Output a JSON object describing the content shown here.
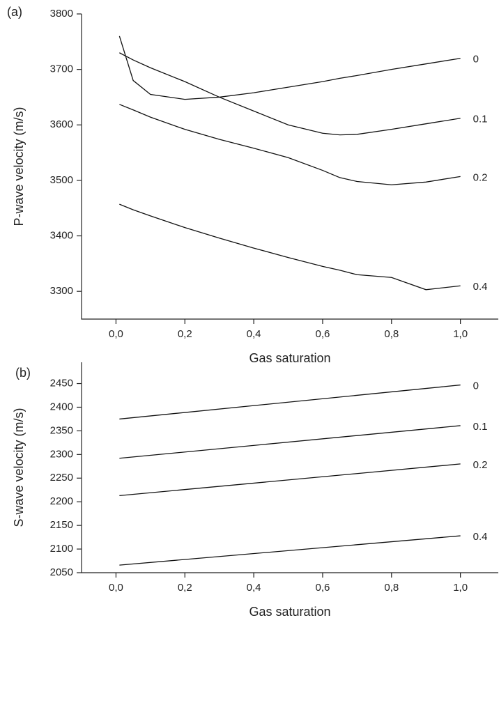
{
  "chart_data": [
    {
      "type": "line",
      "panel_label": "(a)",
      "x_label": "Gas saturation",
      "y_label": "P-wave velocity (m/s)",
      "x": [
        0.01,
        0.05,
        0.1,
        0.2,
        0.3,
        0.4,
        0.5,
        0.6,
        0.65,
        0.7,
        0.8,
        0.9,
        1.0
      ],
      "series": [
        {
          "name": "0",
          "color": "#111111",
          "values": [
            3760,
            3680,
            3655,
            3646,
            3650,
            3658,
            3668,
            3678,
            3684,
            3689,
            3700,
            3710,
            3720
          ]
        },
        {
          "name": "0.1",
          "color": "#111111",
          "values": [
            3730,
            3717,
            3703,
            3678,
            3650,
            3625,
            3600,
            3585,
            3582,
            3583,
            3592,
            3602,
            3612
          ]
        },
        {
          "name": "0.2",
          "color": "#111111",
          "values": [
            3637,
            3627,
            3614,
            3592,
            3574,
            3558,
            3541,
            3518,
            3505,
            3498,
            3492,
            3497,
            3507
          ]
        },
        {
          "name": "0.4",
          "color": "#111111",
          "values": [
            3457,
            3447,
            3436,
            3415,
            3396,
            3378,
            3361,
            3345,
            3338,
            3330,
            3325,
            3303,
            3310
          ]
        }
      ],
      "xlim": [
        -0.1,
        1.11
      ],
      "ylim": [
        3250,
        3800
      ],
      "xticks": [
        {
          "value": 0,
          "label": "0,0"
        },
        {
          "value": 0.2,
          "label": "0,2"
        },
        {
          "value": 0.4,
          "label": "0,4"
        },
        {
          "value": 0.6,
          "label": "0,6"
        },
        {
          "value": 0.8,
          "label": "0,8"
        },
        {
          "value": 1.0,
          "label": "1,0"
        }
      ],
      "yticks": [
        3300,
        3400,
        3500,
        3600,
        3700,
        3800
      ]
    },
    {
      "type": "line",
      "panel_label": "(b)",
      "x_label": "Gas saturation",
      "y_label": "S-wave velocity (m/s)",
      "x": [
        0.01,
        1.0
      ],
      "series": [
        {
          "name": "0",
          "color": "#111111",
          "values": [
            2375,
            2447
          ]
        },
        {
          "name": "0.1",
          "color": "#111111",
          "values": [
            2292,
            2361
          ]
        },
        {
          "name": "0.2",
          "color": "#111111",
          "values": [
            2213,
            2280
          ]
        },
        {
          "name": "0.4",
          "color": "#111111",
          "values": [
            2066,
            2128
          ]
        }
      ],
      "xlim": [
        -0.1,
        1.11
      ],
      "ylim": [
        2050,
        2495
      ],
      "xticks": [
        {
          "value": 0,
          "label": "0,0"
        },
        {
          "value": 0.2,
          "label": "0,2"
        },
        {
          "value": 0.4,
          "label": "0,4"
        },
        {
          "value": 0.6,
          "label": "0,6"
        },
        {
          "value": 0.8,
          "label": "0,8"
        },
        {
          "value": 1.0,
          "label": "1,0"
        }
      ],
      "yticks": [
        2050,
        2100,
        2150,
        2200,
        2250,
        2300,
        2350,
        2400,
        2450
      ]
    }
  ]
}
